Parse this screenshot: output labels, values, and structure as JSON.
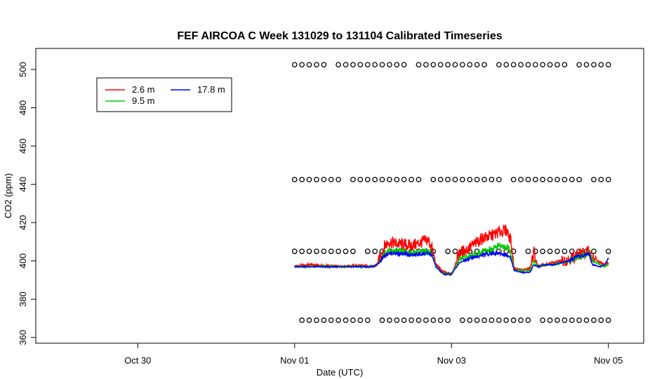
{
  "chart_data": {
    "type": "line",
    "title": "FEF AIRCOA C  Week 131029 to 131104  Calibrated Timeseries",
    "xlabel": "Date (UTC)",
    "ylabel": "CO2 (ppm)",
    "x_tick_labels": [
      "Oct 30",
      "Nov 01",
      "Nov 03",
      "Nov 05"
    ],
    "x_tick_values": [
      -2,
      0,
      2,
      4
    ],
    "xlim": [
      -3.3,
      4.45
    ],
    "y_ticks": [
      360,
      380,
      400,
      420,
      440,
      460,
      480,
      500
    ],
    "ylim": [
      357,
      511
    ],
    "grid": false,
    "legend_position": "top-left",
    "series": [
      {
        "name": "2.6 m",
        "color": "#ff0000",
        "x": [
          0.0,
          0.05,
          0.1,
          0.2,
          0.5,
          0.8,
          1.0,
          1.05,
          1.15,
          1.2,
          1.3,
          1.5,
          1.7,
          1.75,
          1.8,
          1.9,
          2.0,
          2.1,
          2.2,
          2.3,
          2.4,
          2.5,
          2.6,
          2.7,
          2.75,
          2.8,
          2.9,
          3.0,
          3.05,
          3.1,
          3.2,
          3.3,
          3.4,
          3.5,
          3.6,
          3.7,
          3.75,
          3.8,
          3.9,
          3.95,
          4.0
        ],
        "y": [
          397,
          397.5,
          397.5,
          398,
          397,
          397.5,
          397,
          398,
          408,
          410,
          409,
          408,
          411,
          407,
          398,
          394,
          393,
          404,
          406,
          409,
          412,
          413,
          415,
          416,
          412,
          396,
          395,
          396,
          405,
          397,
          398,
          399,
          400,
          401,
          403,
          404,
          405,
          401,
          399,
          398,
          399
        ]
      },
      {
        "name": "9.5 m",
        "color": "#00c800",
        "x": [
          0.0,
          0.2,
          0.5,
          0.8,
          1.0,
          1.05,
          1.15,
          1.2,
          1.3,
          1.5,
          1.7,
          1.75,
          1.8,
          1.9,
          2.0,
          2.1,
          2.2,
          2.3,
          2.4,
          2.5,
          2.6,
          2.7,
          2.75,
          2.8,
          2.9,
          3.0,
          3.05,
          3.1,
          3.2,
          3.3,
          3.4,
          3.5,
          3.6,
          3.7,
          3.75,
          3.8,
          3.9,
          3.95,
          4.0
        ],
        "y": [
          397,
          397,
          397,
          397,
          397,
          398,
          404,
          405,
          405,
          404,
          405,
          404,
          397,
          393,
          393,
          401,
          402,
          403,
          405,
          406,
          408,
          407,
          405,
          395,
          395,
          395,
          400,
          397,
          398,
          398,
          399,
          400,
          402,
          403,
          404,
          400,
          398,
          397,
          398
        ]
      },
      {
        "name": "17.8 m",
        "color": "#0000ff",
        "x": [
          0.0,
          0.2,
          0.5,
          0.8,
          1.0,
          1.05,
          1.15,
          1.2,
          1.3,
          1.5,
          1.7,
          1.75,
          1.8,
          1.9,
          2.0,
          2.1,
          2.2,
          2.3,
          2.4,
          2.5,
          2.6,
          2.7,
          2.75,
          2.8,
          2.9,
          3.0,
          3.05,
          3.1,
          3.2,
          3.3,
          3.4,
          3.5,
          3.6,
          3.7,
          3.75,
          3.8,
          3.9,
          3.95,
          4.0
        ],
        "y": [
          397,
          397,
          397,
          397,
          397,
          398,
          403,
          404,
          404,
          403,
          404,
          403,
          397,
          393,
          393,
          399,
          401,
          402,
          403,
          404,
          404,
          403,
          402,
          395,
          394,
          394,
          398,
          397,
          398,
          398,
          399,
          400,
          402,
          403,
          404,
          398,
          397,
          398,
          401
        ]
      }
    ],
    "calibration_markers": {
      "symbol": "o",
      "color": "#000000",
      "levels": [
        369,
        405,
        442.5,
        502.5
      ],
      "x_range": [
        0.0,
        4.0
      ]
    }
  }
}
